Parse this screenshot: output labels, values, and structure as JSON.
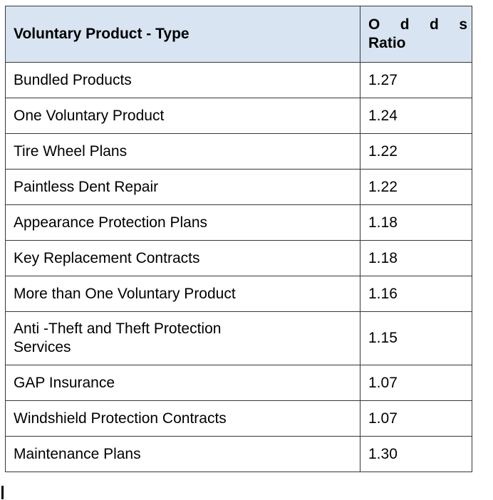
{
  "document": {
    "table": {
      "header": {
        "product_type": "Voluntary Product - Type",
        "odds_word": "Odds",
        "odds_letters": [
          "O",
          "d",
          "d",
          "s"
        ],
        "ratio_word": "Ratio"
      },
      "rows": [
        {
          "product": "Bundled Products",
          "odds_ratio": "1.27"
        },
        {
          "product": "One Voluntary Product",
          "odds_ratio": "1.24"
        },
        {
          "product": "Tire Wheel Plans",
          "odds_ratio": "1.22"
        },
        {
          "product": "Paintless Dent Repair",
          "odds_ratio": "1.22"
        },
        {
          "product": "Appearance Protection Plans",
          "odds_ratio": "1.18"
        },
        {
          "product": "Key Replacement Contracts",
          "odds_ratio": "1.18"
        },
        {
          "product": "More than One Voluntary Product",
          "odds_ratio": "1.16"
        },
        {
          "product": "Anti -Theft and Theft Protection\nServices",
          "odds_ratio": "1.15"
        },
        {
          "product": "GAP Insurance",
          "odds_ratio": "1.07"
        },
        {
          "product": "Windshield Protection Contracts",
          "odds_ratio": "1.07"
        },
        {
          "product": "Maintenance Plans",
          "odds_ratio": "1.30"
        }
      ]
    },
    "colors": {
      "page_bg": "#ffffff",
      "header_bg": "#d8e4f1",
      "border": "#35373a",
      "text": "#000000"
    },
    "caret": {
      "visible": true
    }
  }
}
